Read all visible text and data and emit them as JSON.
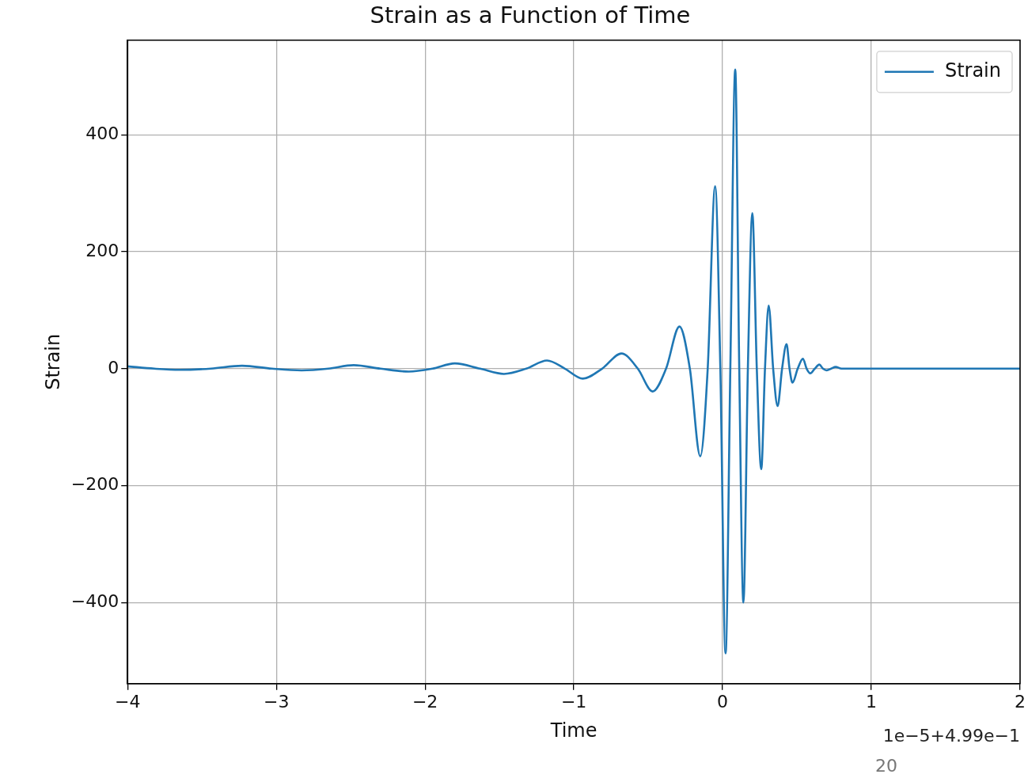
{
  "chart_data": {
    "type": "line",
    "title": "Strain as a Function of Time",
    "xlabel": "Time",
    "ylabel": "Strain",
    "x": [
      -4,
      -3.82,
      -3.65,
      -3.44,
      -3.23,
      -3.03,
      -2.83,
      -2.65,
      -2.48,
      -2.3,
      -2.11,
      -1.95,
      -1.8,
      -1.63,
      -1.47,
      -1.32,
      -1.18,
      -1.06,
      -0.94,
      -0.81,
      -0.68,
      -0.57,
      -0.47,
      -0.38,
      -0.29,
      -0.22,
      -0.15,
      -0.1,
      -0.05,
      -0.015,
      0.02,
      0.052,
      0.085,
      0.112,
      0.14,
      0.17,
      0.2,
      0.23,
      0.26,
      0.285,
      0.31,
      0.34,
      0.37,
      0.4,
      0.43,
      0.45,
      0.47,
      0.505,
      0.54,
      0.565,
      0.59,
      0.62,
      0.65,
      0.675,
      0.7,
      0.73,
      0.76,
      0.8,
      2
    ],
    "series": [
      {
        "name": "Strain",
        "color": "#1f77b4",
        "values": [
          4,
          0,
          -2,
          0,
          5,
          0,
          -3,
          0,
          6,
          0,
          -5,
          0,
          9,
          0,
          -9,
          0,
          14,
          0,
          -17,
          0,
          26,
          0,
          -39,
          0,
          72,
          0,
          -150,
          0,
          312,
          0,
          -487,
          0,
          512,
          0,
          -400,
          0,
          266,
          0,
          -172,
          0,
          108,
          0,
          -64,
          0,
          42,
          0,
          -24,
          0,
          17,
          0,
          -8,
          0,
          7,
          0,
          -3,
          0,
          3,
          0,
          0
        ]
      }
    ],
    "xlim": [
      -4,
      2
    ],
    "xticks": [
      {
        "value": -4,
        "label": "−4"
      },
      {
        "value": -3,
        "label": "−3"
      },
      {
        "value": -2,
        "label": "−2"
      },
      {
        "value": -1,
        "label": "−1"
      },
      0,
      1,
      2
    ],
    "ylim": [
      -539,
      562
    ],
    "yticks": [
      {
        "value": -400,
        "label": "−400"
      },
      {
        "value": -200,
        "label": "−200"
      },
      0,
      200,
      400
    ],
    "annotations": [
      "1e−5+4.99e−1",
      "20"
    ],
    "grid": true,
    "legend": "top right",
    "marker": "none",
    "line_style": "solid"
  }
}
